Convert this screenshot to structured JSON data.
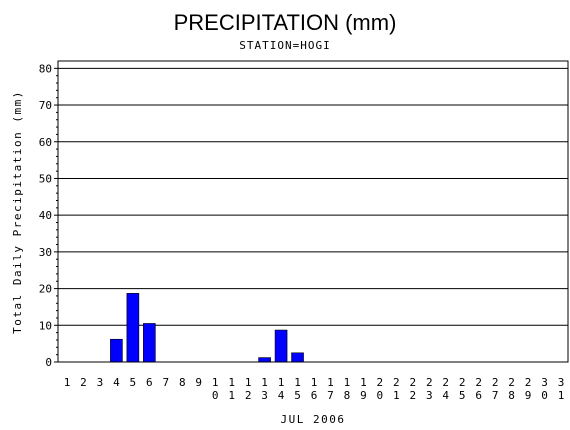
{
  "chart_data": {
    "type": "bar",
    "title": "PRECIPITATION (mm)",
    "subtitle": "STATION=HOGI",
    "xlabel": "JUL 2006",
    "ylabel": "Total Daily Precipitation (mm)",
    "ylim": [
      0,
      82
    ],
    "yticks": [
      "0",
      "10",
      "20",
      "30",
      "40",
      "50",
      "60",
      "70",
      "80"
    ],
    "grid": true,
    "bar_color": "#0000ff",
    "categories": [
      "1",
      "2",
      "3",
      "4",
      "5",
      "6",
      "7",
      "8",
      "9",
      "10",
      "11",
      "12",
      "13",
      "14",
      "15",
      "16",
      "17",
      "18",
      "19",
      "20",
      "21",
      "22",
      "23",
      "24",
      "25",
      "26",
      "27",
      "28",
      "29",
      "30",
      "31"
    ],
    "values": [
      0,
      0,
      0,
      6.2,
      18.7,
      10.5,
      0,
      0,
      0,
      0,
      0,
      0,
      1.2,
      8.7,
      2.5,
      0,
      0,
      0,
      0,
      0,
      0,
      0,
      0,
      0,
      0,
      0,
      0,
      0,
      0,
      0,
      0
    ]
  }
}
